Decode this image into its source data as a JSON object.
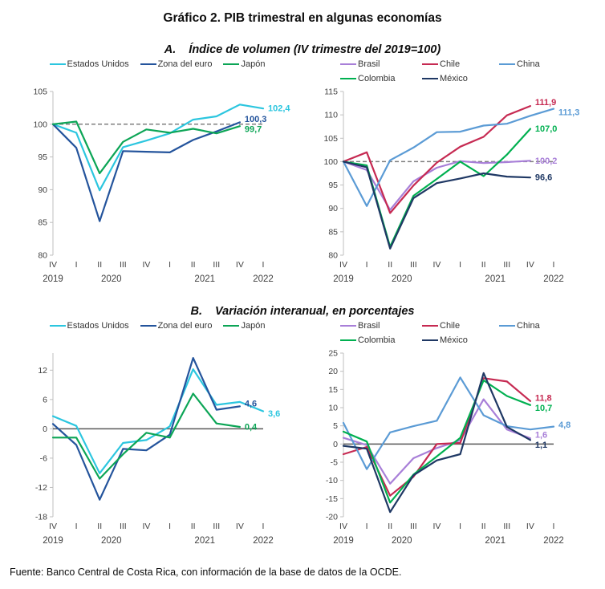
{
  "page": {
    "title": "Gráfico 2. PIB trimestral en algunas economías",
    "section_a": {
      "prefix": "A.",
      "text": "Índice de volumen (IV trimestre del 2019=100)"
    },
    "section_b": {
      "prefix": "B.",
      "text": "Variación interanual, en porcentajes"
    },
    "source": "Fuente: Banco Central de Costa Rica, con información de la base de datos de la OCDE."
  },
  "chart_data": [
    {
      "id": "indice-volumen-avanzadas",
      "type": "line",
      "panel": "A",
      "legend_style": "inline",
      "legend_position": "top",
      "grid": false,
      "x_quarters": [
        "IV",
        "I",
        "II",
        "III",
        "IV",
        "I",
        "II",
        "III",
        "IV",
        "I"
      ],
      "x_years": [
        {
          "label": "2019",
          "pos": 0
        },
        {
          "label": "2020",
          "pos": 2.5
        },
        {
          "label": "2021",
          "pos": 6.5
        },
        {
          "label": "2022",
          "pos": 9
        }
      ],
      "ylim": [
        80,
        105
      ],
      "yticks": [
        80,
        85,
        90,
        95,
        100,
        105
      ],
      "baseline": {
        "value": 100,
        "dashed": true
      },
      "series": [
        {
          "name": "Estados Unidos",
          "color": "#2CC6DF",
          "values": [
            100,
            98.7,
            89.9,
            96.5,
            97.5,
            98.6,
            100.7,
            101.2,
            103.0,
            102.4
          ],
          "end_label": "102,4"
        },
        {
          "name": "Zona del euro",
          "color": "#24549C",
          "values": [
            100,
            96.4,
            85.2,
            95.9,
            95.8,
            95.7,
            97.6,
            98.9,
            100.3
          ],
          "end_label": "100,3"
        },
        {
          "name": "Japón",
          "color": "#0CA556",
          "values": [
            100,
            100.4,
            92.5,
            97.3,
            99.2,
            98.7,
            99.3,
            98.6,
            99.7
          ],
          "end_label": "99,7"
        }
      ]
    },
    {
      "id": "indice-volumen-emergentes",
      "type": "line",
      "panel": "A",
      "legend_style": "grid",
      "legend_position": "top",
      "grid": false,
      "x_quarters": [
        "IV",
        "I",
        "II",
        "III",
        "IV",
        "I",
        "II",
        "III",
        "IV",
        "I"
      ],
      "x_years": [
        {
          "label": "2019",
          "pos": 0
        },
        {
          "label": "2020",
          "pos": 2.5
        },
        {
          "label": "2021",
          "pos": 6.5
        },
        {
          "label": "2022",
          "pos": 9
        }
      ],
      "ylim": [
        80,
        115
      ],
      "yticks": [
        80,
        85,
        90,
        95,
        100,
        105,
        110,
        115
      ],
      "baseline": {
        "value": 100,
        "dashed": true
      },
      "series": [
        {
          "name": "Brasil",
          "color": "#A87FD8",
          "values": [
            100,
            98.2,
            89.7,
            95.8,
            98.7,
            100.1,
            99.7,
            99.9,
            100.2
          ],
          "end_label": "100,2"
        },
        {
          "name": "Chile",
          "color": "#C62A52",
          "values": [
            100,
            102.0,
            89.0,
            94.9,
            99.8,
            103.2,
            105.3,
            109.9,
            111.9
          ],
          "end_label": "111,9"
        },
        {
          "name": "China",
          "color": "#5B9BD5",
          "values": [
            100,
            90.5,
            100.3,
            103.0,
            106.3,
            106.4,
            107.7,
            108.1,
            109.8,
            111.3
          ],
          "end_label": "111,3"
        },
        {
          "name": "Colombia",
          "color": "#00B050",
          "values": [
            100,
            99.2,
            81.8,
            92.7,
            96.3,
            100.0,
            96.9,
            101.5,
            107.0
          ],
          "end_label": "107,0"
        },
        {
          "name": "México",
          "color": "#1F3864",
          "values": [
            100,
            98.8,
            81.4,
            92.2,
            95.4,
            96.4,
            97.5,
            96.8,
            96.6
          ],
          "end_label": "96,6"
        }
      ]
    },
    {
      "id": "variacion-interanual-avanzadas",
      "type": "line",
      "panel": "B",
      "legend_style": "inline",
      "legend_position": "top",
      "grid": false,
      "x_quarters": [
        "IV",
        "I",
        "II",
        "III",
        "IV",
        "I",
        "II",
        "III",
        "IV",
        "I"
      ],
      "x_years": [
        {
          "label": "2019",
          "pos": 0
        },
        {
          "label": "2020",
          "pos": 2.5
        },
        {
          "label": "2021",
          "pos": 6.5
        },
        {
          "label": "2022",
          "pos": 9
        }
      ],
      "ylim": [
        -18,
        15.5
      ],
      "yticks": [
        -18,
        -12,
        -6,
        0,
        6,
        12
      ],
      "baseline": {
        "value": 0,
        "dashed": false
      },
      "series": [
        {
          "name": "Estados Unidos",
          "color": "#2CC6DF",
          "values": [
            2.6,
            0.6,
            -9.1,
            -2.9,
            -2.3,
            0.5,
            12.2,
            4.9,
            5.5,
            3.6
          ],
          "end_label": "3,6"
        },
        {
          "name": "Zona del euro",
          "color": "#24549C",
          "values": [
            1.0,
            -3.3,
            -14.5,
            -4.1,
            -4.4,
            -1.2,
            14.5,
            3.9,
            4.6
          ],
          "end_label": "4,6"
        },
        {
          "name": "Japón",
          "color": "#0CA556",
          "values": [
            -1.8,
            -1.8,
            -10.2,
            -5.2,
            -0.8,
            -1.8,
            7.2,
            1.1,
            0.4
          ],
          "end_label": "0,4"
        }
      ]
    },
    {
      "id": "variacion-interanual-emergentes",
      "type": "line",
      "panel": "B",
      "legend_style": "grid",
      "legend_position": "top",
      "grid": false,
      "x_quarters": [
        "IV",
        "I",
        "II",
        "III",
        "IV",
        "I",
        "II",
        "III",
        "IV",
        "I"
      ],
      "x_years": [
        {
          "label": "2019",
          "pos": 0
        },
        {
          "label": "2020",
          "pos": 2.5
        },
        {
          "label": "2021",
          "pos": 6.5
        },
        {
          "label": "2022",
          "pos": 9
        }
      ],
      "ylim": [
        -20,
        25
      ],
      "yticks": [
        -20,
        -15,
        -10,
        -5,
        0,
        5,
        10,
        15,
        20,
        25
      ],
      "baseline": {
        "value": 0,
        "dashed": false
      },
      "series": [
        {
          "name": "Brasil",
          "color": "#A87FD8",
          "values": [
            1.7,
            -0.3,
            -10.9,
            -3.9,
            -1.1,
            1.0,
            12.3,
            4.0,
            1.6
          ],
          "end_label": "1,6"
        },
        {
          "name": "Chile",
          "color": "#C62A52",
          "values": [
            -2.8,
            -0.8,
            -14.2,
            -9.0,
            0.0,
            0.3,
            18.1,
            17.2,
            11.8
          ],
          "end_label": "11,8"
        },
        {
          "name": "China",
          "color": "#5B9BD5",
          "values": [
            5.8,
            -6.9,
            3.2,
            4.9,
            6.4,
            18.3,
            7.9,
            4.9,
            4.0,
            4.8
          ],
          "end_label": "4,8"
        },
        {
          "name": "Colombia",
          "color": "#00B050",
          "values": [
            3.4,
            0.7,
            -16.1,
            -8.4,
            -3.4,
            1.7,
            17.5,
            13.2,
            10.7
          ],
          "end_label": "10,7"
        },
        {
          "name": "México",
          "color": "#1F3864",
          "values": [
            -0.5,
            -1.3,
            -18.7,
            -8.6,
            -4.5,
            -2.8,
            19.5,
            4.7,
            1.1
          ],
          "end_label": "1,1"
        }
      ]
    }
  ]
}
